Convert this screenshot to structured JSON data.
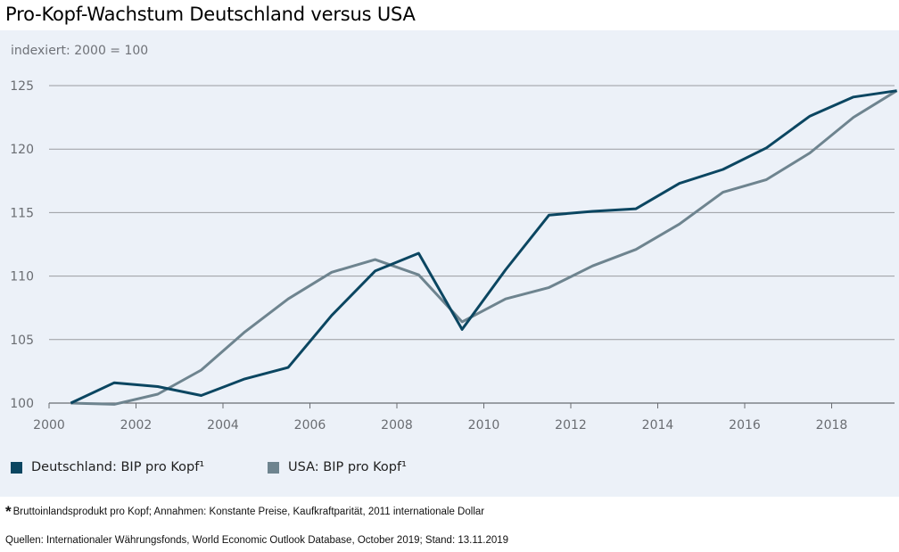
{
  "title": "Pro-Kopf-Wachstum Deutschland versus USA",
  "index_note": "indexiert: 2000 = 100",
  "colors": {
    "panel": "#ecf1f8",
    "germany": "#0b4661",
    "usa": "#6e848f",
    "grid": "#9a9ca0"
  },
  "legend": [
    {
      "label": "Deutschland: BIP pro Kopf¹",
      "color": "#0b4661"
    },
    {
      "label": "USA: BIP pro Kopf¹",
      "color": "#6e848f"
    }
  ],
  "footnote": {
    "marker": "*",
    "text": "Bruttoinlandsprodukt pro Kopf; Annahmen: Konstante Preise, Kaufkraftparität, 2011 internationale Dollar"
  },
  "source": "Quellen: Internationaler Währungsfonds, World Economic Outlook Database, October 2019; Stand: 13.11.2019",
  "chart_data": {
    "type": "line",
    "title": "Pro-Kopf-Wachstum Deutschland versus USA",
    "ylabel": "indexiert: 2000 = 100",
    "xlim": [
      2000,
      2019.6
    ],
    "ylim": [
      100,
      125
    ],
    "x_ticks": [
      "2000",
      "2002",
      "2004",
      "2006",
      "2008",
      "2010",
      "2012",
      "2014",
      "2016",
      "2018"
    ],
    "y_ticks": [
      "100",
      "105",
      "110",
      "115",
      "120",
      "125"
    ],
    "grid": "horizontal",
    "legend_position": "bottom",
    "x": [
      2000.5,
      2001.5,
      2002.5,
      2003.5,
      2004.5,
      2005.5,
      2006.5,
      2007.5,
      2008.5,
      2009.5,
      2010.5,
      2011.5,
      2012.5,
      2013.5,
      2014.5,
      2015.5,
      2016.5,
      2017.5,
      2018.5,
      2019.5
    ],
    "series": [
      {
        "name": "Deutschland: BIP pro Kopf¹",
        "color": "#0b4661",
        "values": [
          100,
          101.6,
          101.3,
          100.6,
          101.9,
          102.8,
          106.9,
          110.4,
          111.8,
          105.8,
          110.5,
          114.8,
          115.1,
          115.3,
          117.3,
          118.4,
          120.1,
          122.6,
          124.1,
          124.6
        ]
      },
      {
        "name": "USA: BIP pro Kopf¹",
        "color": "#6e848f",
        "values": [
          100,
          99.9,
          100.7,
          102.6,
          105.6,
          108.2,
          110.3,
          111.3,
          110.1,
          106.4,
          108.2,
          109.1,
          110.8,
          112.1,
          114.1,
          116.6,
          117.6,
          119.7,
          122.5,
          124.6
        ]
      }
    ]
  }
}
